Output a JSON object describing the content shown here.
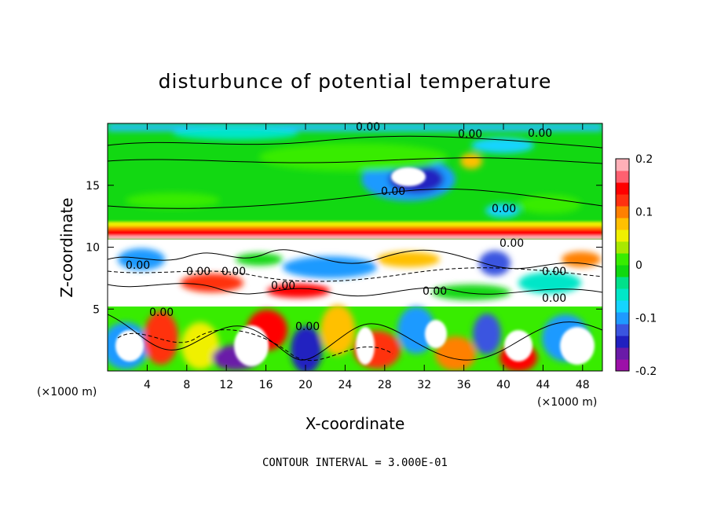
{
  "chart_data": {
    "type": "heatmap",
    "title": "disturbunce of potential temperature",
    "xlabel": "X-coordinate",
    "ylabel": "Z-coordinate",
    "x_unit": "(×1000 m)",
    "z_unit": "(×1000 m)",
    "xlim": [
      0,
      50
    ],
    "ylim": [
      0,
      20
    ],
    "x_ticks": [
      "4",
      "8",
      "12",
      "16",
      "20",
      "24",
      "28",
      "32",
      "36",
      "40",
      "44",
      "48"
    ],
    "y_ticks": [
      "5",
      "10",
      "15"
    ],
    "colorbar": {
      "range": [
        -0.2,
        0.2
      ],
      "tick_labels": [
        "0.2",
        "0.1",
        "0",
        "-0.1",
        "-0.2"
      ],
      "colors": [
        "#9c10a8",
        "#6a1aa8",
        "#2020c0",
        "#3a55e0",
        "#1e9aff",
        "#14d4ff",
        "#00e6c8",
        "#00e08a",
        "#10d810",
        "#38ec00",
        "#a8e800",
        "#f0f000",
        "#ffc000",
        "#ff8000",
        "#ff3010",
        "#ff0000",
        "#ff6070",
        "#ffb0b8"
      ]
    },
    "contour_interval": "CONTOUR INTERVAL = 3.000E-01",
    "contour_labels": [
      "0.00",
      "0.00",
      "0.00",
      "0.00",
      "0.00",
      "0.00",
      "0.00",
      "0.00",
      "0.00",
      "0.00",
      "0.00",
      "0.00",
      "0.00",
      "0.00",
      "0.00"
    ]
  }
}
